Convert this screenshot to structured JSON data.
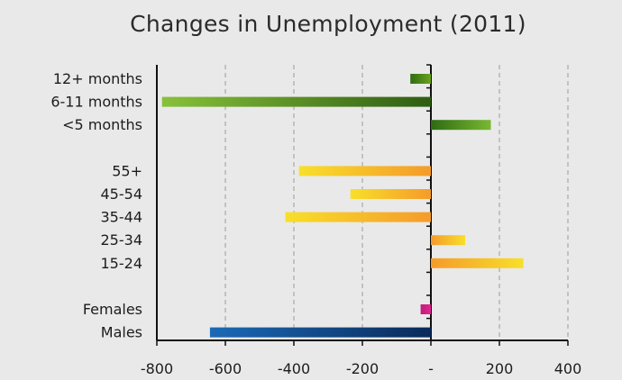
{
  "chart_data": {
    "type": "bar",
    "orientation": "horizontal",
    "title": "Changes in Unemployment (2011)",
    "xlim": [
      -800,
      400
    ],
    "xticks": [
      -800,
      -600,
      -400,
      -200,
      0,
      200,
      400
    ],
    "xtick_labels": [
      "-800",
      "-600",
      "-400",
      "-200",
      "-",
      "200",
      "400"
    ],
    "grid": "vertical dashed",
    "categories": [
      {
        "label": "12+ months",
        "value": -60,
        "color_start": "#2e6b12",
        "color_end": "#6aa31f"
      },
      {
        "label": "6-11 months",
        "value": -785,
        "color_start": "#87c13a",
        "color_end": "#2f5d12"
      },
      {
        "label": "<5 months",
        "value": 175,
        "color_start": "#2e6b12",
        "color_end": "#79b832"
      },
      {
        "label": "",
        "value": null
      },
      {
        "label": "55+",
        "value": -385,
        "color_start": "#f8df2a",
        "color_end": "#f59b2a"
      },
      {
        "label": "45-54",
        "value": -235,
        "color_start": "#f8df2a",
        "color_end": "#f59b2a"
      },
      {
        "label": "35-44",
        "value": -425,
        "color_start": "#f8df2a",
        "color_end": "#f59b2a"
      },
      {
        "label": "25-34",
        "value": 100,
        "color_start": "#f59b2a",
        "color_end": "#f8df2a"
      },
      {
        "label": "15-24",
        "value": 270,
        "color_start": "#f59b2a",
        "color_end": "#f8df2a"
      },
      {
        "label": "",
        "value": null
      },
      {
        "label": "Females",
        "value": -30,
        "color_start": "#c21a7a",
        "color_end": "#e0268e"
      },
      {
        "label": "Males",
        "value": -645,
        "color_start": "#1b6ab7",
        "color_end": "#0a2a5a"
      }
    ]
  }
}
